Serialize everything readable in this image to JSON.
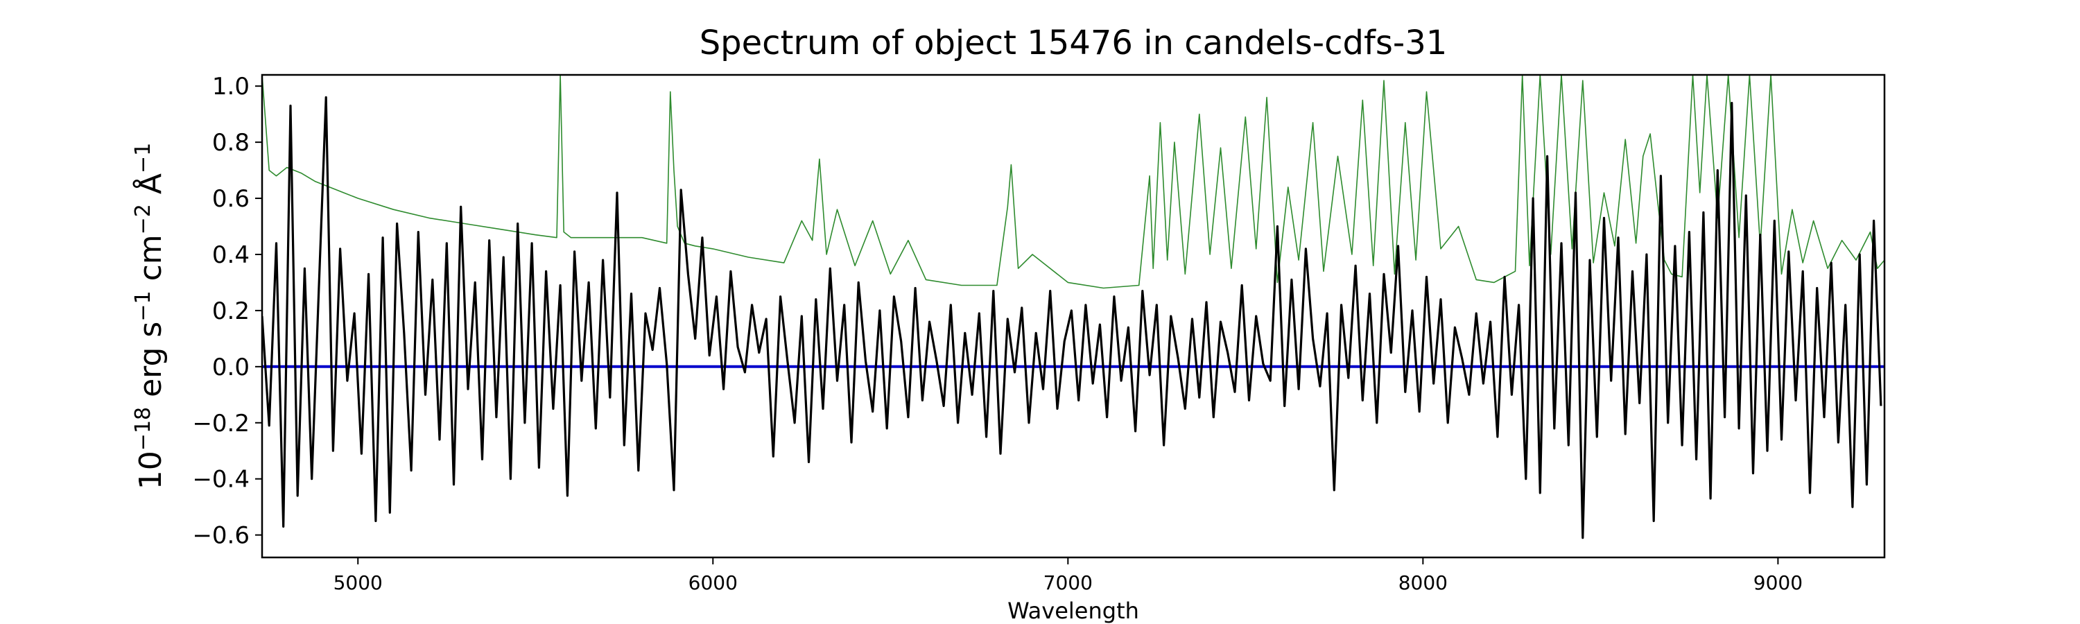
{
  "chart_data": {
    "type": "line",
    "title": "Spectrum of object 15476 in candels-cdfs-31",
    "xlabel": "Wavelength",
    "ylabel": "10^-18 erg s^-1 cm^-2 Å^-1",
    "ylabel_parts": {
      "base": "10",
      "exp1": "−18",
      "erg": " erg s",
      "exp2": "−1",
      "cm": " cm",
      "exp3": "−2",
      "ang": " Å",
      "exp4": "−1"
    },
    "xlim": [
      4730,
      9300
    ],
    "ylim": [
      -0.68,
      1.04
    ],
    "xticks": [
      5000,
      6000,
      7000,
      8000,
      9000
    ],
    "xtick_labels": [
      "5000",
      "6000",
      "7000",
      "8000",
      "9000"
    ],
    "yticks": [
      -0.6,
      -0.4,
      -0.2,
      0.0,
      0.2,
      0.4,
      0.6,
      0.8,
      1.0
    ],
    "ytick_labels": [
      "−0.6",
      "−0.4",
      "−0.2",
      "0.0",
      "0.2",
      "0.4",
      "0.6",
      "0.8",
      "1.0"
    ],
    "grid": false,
    "legend": false,
    "series": [
      {
        "role": "flux",
        "color": "#000000",
        "x": [
          4730,
          4750,
          4770,
          4790,
          4810,
          4830,
          4850,
          4870,
          4890,
          4910,
          4930,
          4950,
          4970,
          4990,
          5010,
          5030,
          5050,
          5070,
          5090,
          5110,
          5130,
          5150,
          5170,
          5190,
          5210,
          5230,
          5250,
          5270,
          5290,
          5310,
          5330,
          5350,
          5370,
          5390,
          5410,
          5430,
          5450,
          5470,
          5490,
          5510,
          5530,
          5550,
          5570,
          5590,
          5610,
          5630,
          5650,
          5670,
          5690,
          5710,
          5730,
          5750,
          5770,
          5790,
          5810,
          5830,
          5850,
          5870,
          5890,
          5910,
          5930,
          5950,
          5970,
          5990,
          6010,
          6030,
          6050,
          6070,
          6090,
          6110,
          6130,
          6150,
          6170,
          6190,
          6210,
          6230,
          6250,
          6270,
          6290,
          6310,
          6330,
          6350,
          6370,
          6390,
          6410,
          6430,
          6450,
          6470,
          6490,
          6510,
          6530,
          6550,
          6570,
          6590,
          6610,
          6630,
          6650,
          6670,
          6690,
          6710,
          6730,
          6750,
          6770,
          6790,
          6810,
          6830,
          6850,
          6870,
          6890,
          6910,
          6930,
          6950,
          6970,
          6990,
          7010,
          7030,
          7050,
          7070,
          7090,
          7110,
          7130,
          7150,
          7170,
          7190,
          7210,
          7230,
          7250,
          7270,
          7290,
          7310,
          7330,
          7350,
          7370,
          7390,
          7410,
          7430,
          7450,
          7470,
          7490,
          7510,
          7530,
          7550,
          7570,
          7590,
          7610,
          7630,
          7650,
          7670,
          7690,
          7710,
          7730,
          7750,
          7770,
          7790,
          7810,
          7830,
          7850,
          7870,
          7890,
          7910,
          7930,
          7950,
          7970,
          7990,
          8010,
          8030,
          8050,
          8070,
          8090,
          8110,
          8130,
          8150,
          8170,
          8190,
          8210,
          8230,
          8250,
          8270,
          8290,
          8310,
          8330,
          8350,
          8370,
          8390,
          8410,
          8430,
          8450,
          8470,
          8490,
          8510,
          8530,
          8550,
          8570,
          8590,
          8610,
          8630,
          8650,
          8670,
          8690,
          8710,
          8730,
          8750,
          8770,
          8790,
          8810,
          8830,
          8850,
          8870,
          8890,
          8910,
          8930,
          8950,
          8970,
          8990,
          9010,
          9030,
          9050,
          9070,
          9090,
          9110,
          9130,
          9150,
          9170,
          9190,
          9210,
          9230,
          9250,
          9270,
          9290
        ],
        "y": [
          0.18,
          -0.21,
          0.44,
          -0.57,
          0.93,
          -0.46,
          0.35,
          -0.4,
          0.28,
          0.96,
          -0.3,
          0.42,
          -0.05,
          0.19,
          -0.31,
          0.33,
          -0.55,
          0.46,
          -0.52,
          0.51,
          0.12,
          -0.37,
          0.48,
          -0.1,
          0.31,
          -0.26,
          0.44,
          -0.42,
          0.57,
          -0.08,
          0.3,
          -0.33,
          0.45,
          -0.18,
          0.39,
          -0.4,
          0.51,
          -0.2,
          0.44,
          -0.36,
          0.34,
          -0.15,
          0.29,
          -0.46,
          0.41,
          -0.05,
          0.3,
          -0.22,
          0.38,
          -0.11,
          0.62,
          -0.28,
          0.26,
          -0.37,
          0.19,
          0.06,
          0.28,
          0.01,
          -0.44,
          0.63,
          0.33,
          0.1,
          0.46,
          0.04,
          0.25,
          -0.08,
          0.34,
          0.07,
          -0.02,
          0.22,
          0.05,
          0.17,
          -0.32,
          0.25,
          0.02,
          -0.2,
          0.18,
          -0.34,
          0.24,
          -0.15,
          0.35,
          -0.05,
          0.22,
          -0.27,
          0.3,
          0.02,
          -0.16,
          0.2,
          -0.22,
          0.25,
          0.09,
          -0.18,
          0.28,
          -0.12,
          0.16,
          0.02,
          -0.14,
          0.22,
          -0.2,
          0.12,
          -0.1,
          0.19,
          -0.25,
          0.27,
          -0.31,
          0.17,
          -0.02,
          0.21,
          -0.2,
          0.12,
          -0.08,
          0.27,
          -0.15,
          0.09,
          0.2,
          -0.12,
          0.22,
          -0.06,
          0.15,
          -0.18,
          0.25,
          -0.05,
          0.14,
          -0.23,
          0.27,
          -0.03,
          0.22,
          -0.28,
          0.18,
          0.03,
          -0.15,
          0.17,
          -0.11,
          0.23,
          -0.18,
          0.16,
          0.05,
          -0.09,
          0.29,
          -0.12,
          0.18,
          0.01,
          -0.05,
          0.5,
          -0.14,
          0.31,
          -0.08,
          0.42,
          0.1,
          -0.07,
          0.19,
          -0.44,
          0.22,
          -0.04,
          0.36,
          -0.12,
          0.26,
          -0.2,
          0.33,
          0.05,
          0.43,
          -0.09,
          0.2,
          -0.16,
          0.32,
          -0.06,
          0.24,
          -0.2,
          0.14,
          0.03,
          -0.1,
          0.19,
          -0.06,
          0.16,
          -0.25,
          0.32,
          -0.1,
          0.22,
          -0.4,
          0.6,
          -0.45,
          0.75,
          -0.22,
          0.44,
          -0.28,
          0.62,
          -0.61,
          0.38,
          -0.25,
          0.53,
          -0.05,
          0.46,
          -0.24,
          0.34,
          -0.13,
          0.4,
          -0.55,
          0.68,
          -0.2,
          0.43,
          -0.28,
          0.48,
          -0.33,
          0.55,
          -0.47,
          0.7,
          -0.18,
          0.94,
          -0.22,
          0.61,
          -0.38,
          0.47,
          -0.3,
          0.52,
          -0.26,
          0.41,
          -0.12,
          0.34,
          -0.45,
          0.28,
          -0.18,
          0.37,
          -0.27,
          0.22,
          -0.5,
          0.4,
          -0.42,
          0.52,
          -0.14
        ]
      },
      {
        "role": "error",
        "color": "#2e8b2e",
        "x": [
          4730,
          4750,
          4770,
          4800,
          4840,
          4880,
          4920,
          4960,
          5000,
          5100,
          5200,
          5300,
          5400,
          5500,
          5560,
          5570,
          5580,
          5600,
          5700,
          5800,
          5870,
          5880,
          5890,
          5900,
          5920,
          5950,
          6000,
          6100,
          6200,
          6250,
          6280,
          6300,
          6320,
          6350,
          6400,
          6450,
          6500,
          6550,
          6600,
          6700,
          6800,
          6830,
          6840,
          6860,
          6900,
          7000,
          7100,
          7200,
          7230,
          7240,
          7260,
          7280,
          7300,
          7330,
          7370,
          7400,
          7430,
          7460,
          7500,
          7530,
          7560,
          7590,
          7620,
          7650,
          7690,
          7720,
          7760,
          7800,
          7830,
          7860,
          7890,
          7920,
          7950,
          7980,
          8010,
          8050,
          8100,
          8150,
          8200,
          8260,
          8280,
          8300,
          8330,
          8360,
          8390,
          8420,
          8450,
          8480,
          8510,
          8540,
          8570,
          8600,
          8620,
          8640,
          8660,
          8680,
          8700,
          8730,
          8760,
          8780,
          8800,
          8830,
          8860,
          8890,
          8920,
          8950,
          8980,
          9010,
          9040,
          9070,
          9100,
          9140,
          9180,
          9220,
          9260,
          9280,
          9300
        ],
        "y": [
          1.04,
          0.7,
          0.68,
          0.71,
          0.69,
          0.66,
          0.64,
          0.62,
          0.6,
          0.56,
          0.53,
          0.51,
          0.49,
          0.47,
          0.46,
          1.04,
          0.48,
          0.46,
          0.46,
          0.46,
          0.44,
          0.98,
          0.7,
          0.5,
          0.44,
          0.43,
          0.42,
          0.39,
          0.37,
          0.52,
          0.45,
          0.74,
          0.4,
          0.56,
          0.36,
          0.52,
          0.33,
          0.45,
          0.31,
          0.29,
          0.29,
          0.57,
          0.72,
          0.35,
          0.4,
          0.3,
          0.28,
          0.29,
          0.68,
          0.35,
          0.87,
          0.38,
          0.8,
          0.33,
          0.9,
          0.4,
          0.78,
          0.35,
          0.89,
          0.42,
          0.96,
          0.3,
          0.64,
          0.38,
          0.87,
          0.34,
          0.75,
          0.4,
          0.95,
          0.36,
          1.02,
          0.33,
          0.87,
          0.38,
          0.98,
          0.42,
          0.5,
          0.31,
          0.3,
          0.34,
          1.04,
          0.36,
          1.04,
          0.4,
          1.04,
          0.42,
          1.02,
          0.37,
          0.62,
          0.43,
          0.81,
          0.44,
          0.75,
          0.83,
          0.6,
          0.38,
          0.33,
          0.32,
          1.04,
          0.62,
          1.04,
          0.53,
          1.04,
          0.46,
          1.04,
          0.43,
          1.04,
          0.33,
          0.56,
          0.37,
          0.52,
          0.35,
          0.45,
          0.38,
          0.48,
          0.35,
          0.38
        ]
      },
      {
        "role": "model",
        "color": "#0000cc",
        "x": [
          4730,
          9300
        ],
        "y": [
          0.0,
          0.0
        ]
      }
    ]
  }
}
